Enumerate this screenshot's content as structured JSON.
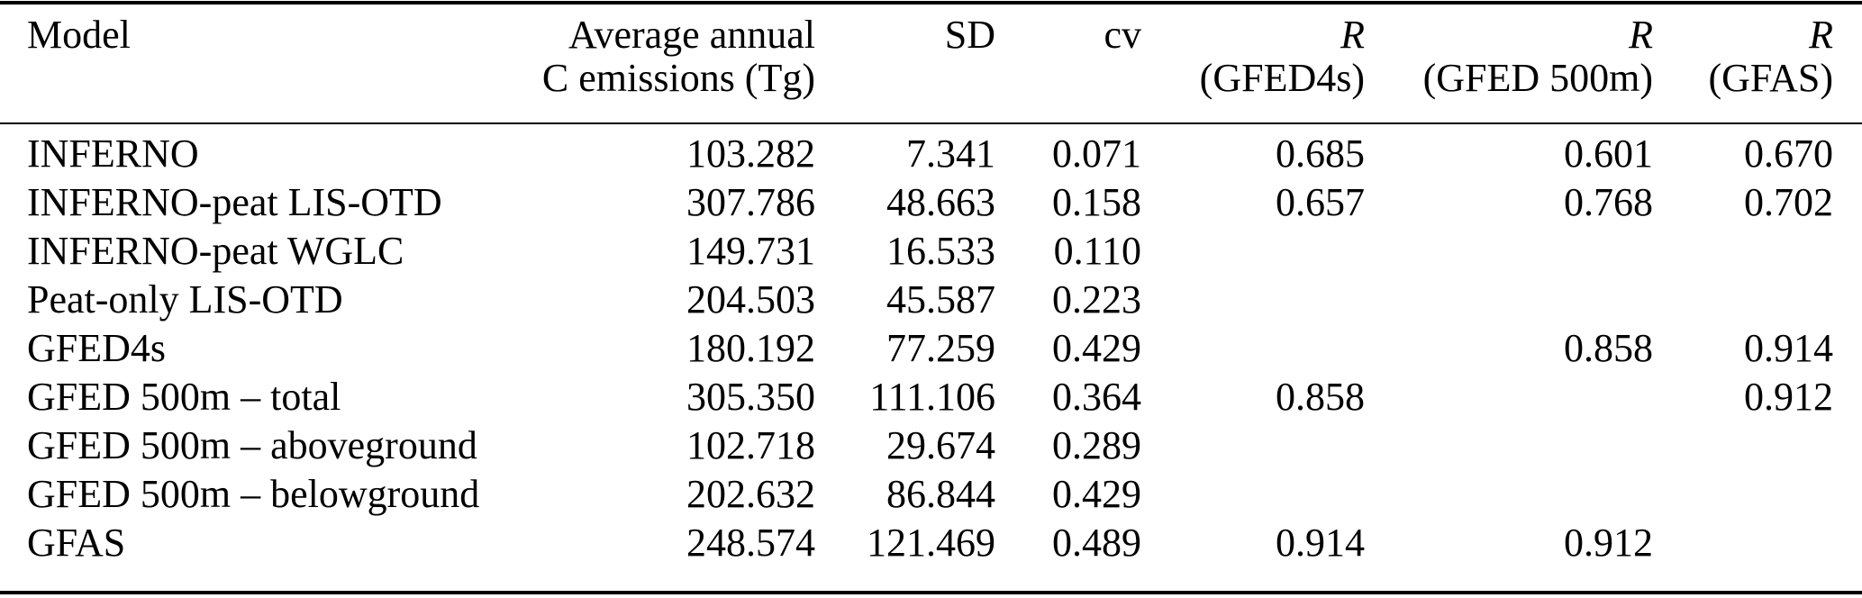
{
  "colors": {
    "background": "#ffffff",
    "text": "#000000",
    "rule": "#000000"
  },
  "table": {
    "columns": [
      {
        "id": "model",
        "label_line1": "Model",
        "label_line2": ""
      },
      {
        "id": "avg_annual",
        "label_line1": "Average annual",
        "label_line2": "C emissions (Tg)"
      },
      {
        "id": "sd",
        "label_line1": "SD",
        "label_line2": ""
      },
      {
        "id": "cv",
        "label_line1": "cv",
        "label_line2": ""
      },
      {
        "id": "r_gfed4s",
        "label_line1": "R",
        "label_line2": "(GFED4s)"
      },
      {
        "id": "r_gfed500m",
        "label_line1": "R",
        "label_line2": "(GFED 500m)"
      },
      {
        "id": "r_gfas",
        "label_line1": "R",
        "label_line2": "(GFAS)"
      }
    ],
    "rows": [
      [
        "INFERNO",
        "103.282",
        "7.341",
        "0.071",
        "0.685",
        "0.601",
        "0.670"
      ],
      [
        "INFERNO-peat LIS-OTD",
        "307.786",
        "48.663",
        "0.158",
        "0.657",
        "0.768",
        "0.702"
      ],
      [
        "INFERNO-peat WGLC",
        "149.731",
        "16.533",
        "0.110",
        "",
        "",
        ""
      ],
      [
        "Peat-only LIS-OTD",
        "204.503",
        "45.587",
        "0.223",
        "",
        "",
        ""
      ],
      [
        "GFED4s",
        "180.192",
        "77.259",
        "0.429",
        "",
        "0.858",
        "0.914"
      ],
      [
        "GFED 500m – total",
        "305.350",
        "111.106",
        "0.364",
        "0.858",
        "",
        "0.912"
      ],
      [
        "GFED 500m – aboveground",
        "102.718",
        "29.674",
        "0.289",
        "",
        "",
        ""
      ],
      [
        "GFED 500m – belowground",
        "202.632",
        "86.844",
        "0.429",
        "",
        "",
        ""
      ],
      [
        "GFAS",
        "248.574",
        "121.469",
        "0.489",
        "0.914",
        "0.912",
        ""
      ]
    ]
  }
}
